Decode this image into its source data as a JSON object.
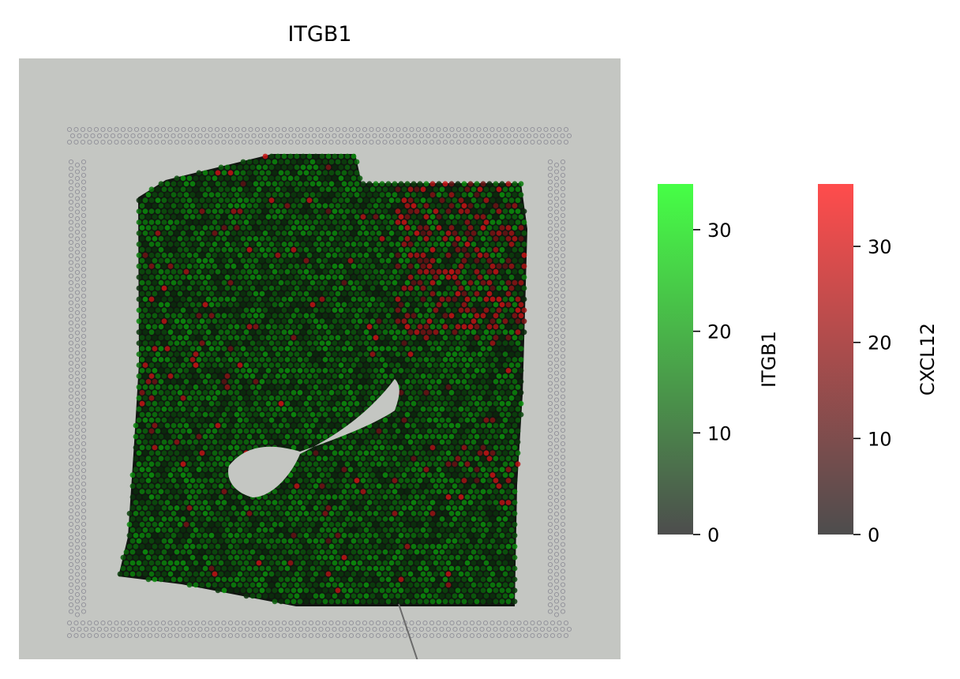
{
  "chart_data": {
    "type": "scatter",
    "subtype": "spatial-transcriptomics-overlay",
    "title": "ITGB1",
    "background": "tissue histology image (H&E)",
    "layers": [
      {
        "gene": "ITGB1",
        "color_low": "#4d4d4d",
        "color_high": "#46ff46"
      },
      {
        "gene": "CXCL12",
        "color_low": "#4d4d4d",
        "color_high": "#ff4c4c"
      }
    ],
    "colorbars": [
      {
        "label": "ITGB1",
        "range": [
          0,
          34.5
        ],
        "ticks": [
          0,
          10,
          20,
          30
        ],
        "tick_labels": [
          "0",
          "10",
          "20",
          "30"
        ],
        "color_low": "#4d4d4d",
        "color_high": "#46ff46"
      },
      {
        "label": "CXCL12",
        "range": [
          0,
          36.5
        ],
        "ticks": [
          0,
          10,
          20,
          30
        ],
        "tick_labels": [
          "0",
          "10",
          "20",
          "30"
        ],
        "color_low": "#4d4d4d",
        "color_high": "#ff4c4c"
      }
    ],
    "axes_visible": false,
    "grid": false
  }
}
